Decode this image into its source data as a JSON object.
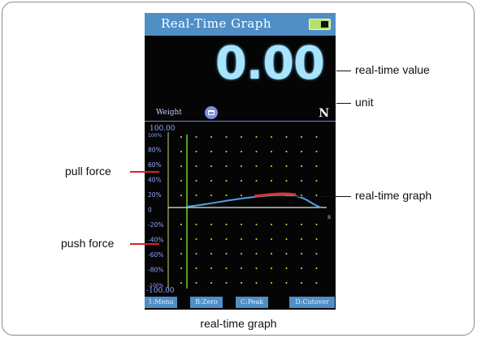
{
  "device": {
    "title": "Real-Time Graph",
    "value": "0.00",
    "mode_label": "Weight",
    "unit": "N",
    "graph": {
      "top_value": "100.00",
      "bottom_value": "-100.00",
      "y_ticks": [
        "100%",
        "80%",
        "60%",
        "40%",
        "20%",
        "0",
        "-20%",
        "-40%",
        "-60%",
        "-80%",
        "-100%"
      ],
      "x_unit": "s"
    },
    "softkeys": [
      "1:Menu",
      "B:Zero",
      "C:Peak",
      "D:Cutover"
    ]
  },
  "callouts": {
    "realtime_value": "real-time value",
    "unit": "unit",
    "realtime_graph": "real-time graph",
    "pull_force": "pull force",
    "push_force": "push force"
  },
  "caption": "real-time graph",
  "colors": {
    "titlebar": "#4f8fc6",
    "value": "#a9e4ff",
    "grid_dots": "#d9e24a",
    "axis_labels": "#8fa6ff",
    "curve_blue": "#4aa3e8",
    "curve_red": "#e03030",
    "cursor_line": "#6fd13a"
  }
}
